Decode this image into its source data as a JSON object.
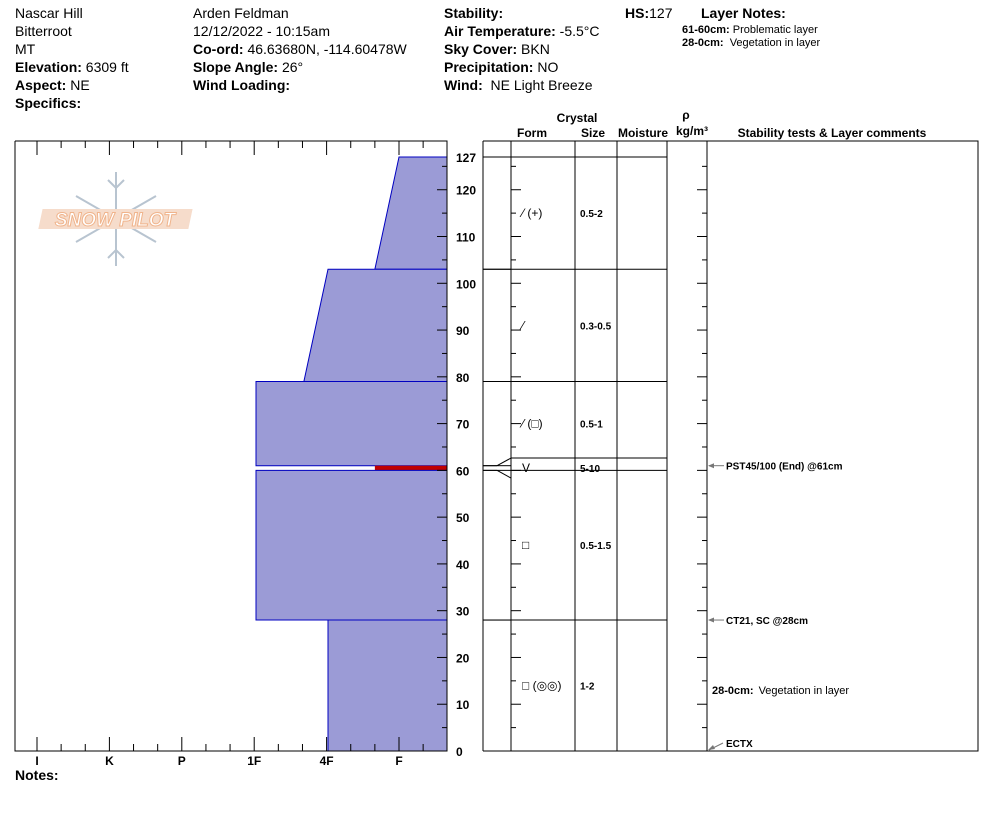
{
  "header": {
    "location": "Nascar Hill",
    "range": "Bitterroot",
    "state": "MT",
    "elevation_label": "Elevation:",
    "elevation": "6309 ft",
    "aspect_label": "Aspect:",
    "aspect": "NE",
    "specifics_label": "Specifics:",
    "observer": "Arden Feldman",
    "datetime": "12/12/2022 - 10:15am",
    "coord_label": "Co-ord:",
    "coord": "46.63680N, -114.60478W",
    "slope_label": "Slope Angle:",
    "slope": "26°",
    "wind_loading_label": "Wind Loading:",
    "stability_label": "Stability:",
    "air_temp_label": "Air Temperature:",
    "air_temp": "-5.5°C",
    "sky_label": "Sky Cover:",
    "sky": "BKN",
    "precip_label": "Precipitation:",
    "precip": "NO",
    "wind_label": "Wind:",
    "wind": "NE Light Breeze",
    "hs_label": "HS:",
    "hs": "127",
    "layer_notes_label": "Layer Notes:",
    "layer_notes": [
      {
        "range": "61-60cm:",
        "text": "Problematic layer"
      },
      {
        "range": "28-0cm:",
        "text": "Vegetation in layer"
      }
    ]
  },
  "logo": {
    "text": "SNOW PILOT",
    "color": "#f0b48c"
  },
  "notes_label": "Notes:",
  "columns": {
    "crystal": "Crystal",
    "form": "Form",
    "size": "Size",
    "moisture": "Moisture",
    "rho": "ρ",
    "density_unit": "kg/m³",
    "comments": "Stability tests & Layer comments"
  },
  "chart_data": {
    "type": "snow-profile",
    "y_axis": {
      "unit": "cm",
      "range": [
        0,
        127
      ],
      "ticks": [
        0,
        10,
        20,
        30,
        40,
        50,
        60,
        70,
        80,
        90,
        100,
        110,
        120,
        127
      ]
    },
    "x_axis": {
      "hardness_labels": [
        "I",
        "K",
        "P",
        "1F",
        "4F",
        "F"
      ]
    },
    "colors": {
      "layer_fill": "#9b9bd6",
      "layer_edge": "#0000c0",
      "problem_layer": "#c00000"
    },
    "layers": [
      {
        "top": 127,
        "bottom": 103,
        "hardness_top": "F",
        "hardness_bottom": "F+",
        "form": "⁄ (+)",
        "size": "0.5-2"
      },
      {
        "top": 103,
        "bottom": 79,
        "hardness_top": "4F",
        "hardness_bottom": "4F+",
        "form": "⁄",
        "size": "0.3-0.5"
      },
      {
        "top": 79,
        "bottom": 61,
        "hardness_top": "1F",
        "hardness_bottom": "1F",
        "form": "⁄ (□)",
        "size": "0.5-1"
      },
      {
        "top": 61,
        "bottom": 60,
        "hardness_top": "F+",
        "hardness_bottom": "F+",
        "form": "V",
        "size": "5-10",
        "problem": true
      },
      {
        "top": 60,
        "bottom": 28,
        "hardness_top": "1F",
        "hardness_bottom": "1F",
        "form": "□",
        "size": "0.5-1.5"
      },
      {
        "top": 28,
        "bottom": 0,
        "hardness_top": "4F",
        "hardness_bottom": "4F",
        "form": "□ (◎◎)",
        "size": "1-2"
      }
    ],
    "comments": [
      {
        "depth": 61,
        "text": "PST45/100 (End) @61cm",
        "arrow": true
      },
      {
        "depth": 28,
        "text": "CT21, SC @28cm",
        "arrow": true
      },
      {
        "depth": 13,
        "label": "28-0cm:",
        "text": "Vegetation in layer",
        "arrow": false
      },
      {
        "depth": 0,
        "text": "ECTX",
        "arrow": "diagonal"
      }
    ]
  }
}
